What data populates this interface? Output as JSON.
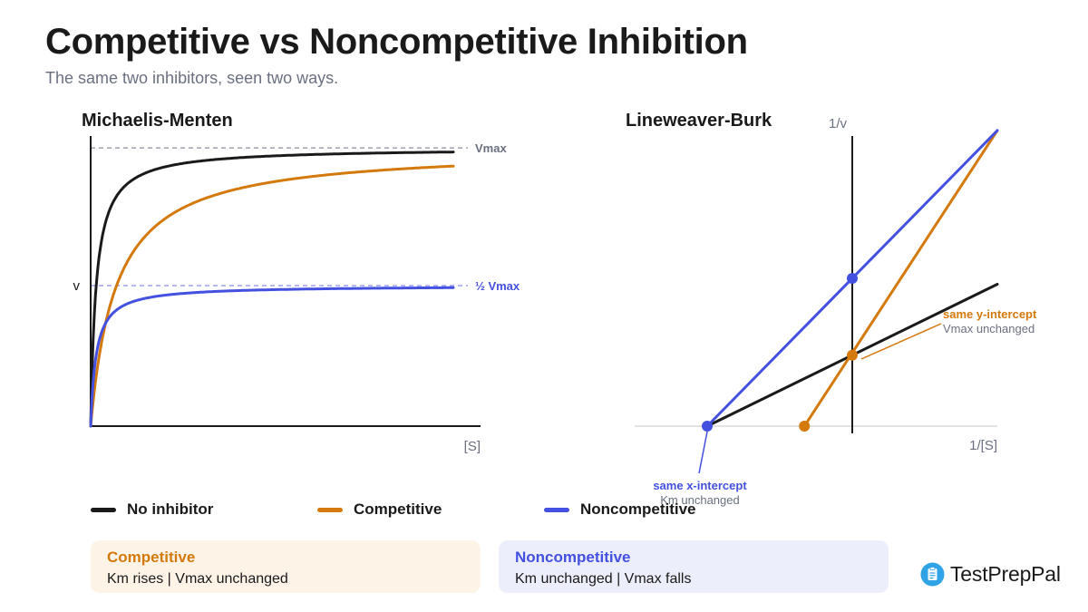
{
  "header": {
    "title": "Competitive vs Noncompetitive Inhibition",
    "subtitle": "The same two inhibitors, seen two ways."
  },
  "colors": {
    "no_inhibitor": "#1a1a1a",
    "competitive": "#d4790c",
    "noncompetitive": "#4450e0",
    "axis": "#1a1a1a",
    "reference": "#8a8fa0",
    "muted_text": "#6b7080"
  },
  "chart_data": [
    {
      "type": "line",
      "title": "Michaelis-Menten",
      "xlabel": "[S]",
      "ylabel": "v",
      "xlim": [
        0,
        100
      ],
      "ylim": [
        0,
        1
      ],
      "grid": false,
      "reference_lines": [
        {
          "label": "Vmax",
          "y": 0.99
        },
        {
          "label": "½ Vmax",
          "y": 0.5
        }
      ],
      "series": [
        {
          "name": "No inhibitor",
          "kind": "michaelis-menten",
          "vmax": 0.99,
          "km": 1.5
        },
        {
          "name": "Competitive",
          "kind": "michaelis-menten",
          "vmax": 0.99,
          "km": 7
        },
        {
          "name": "Noncompetitive",
          "kind": "michaelis-menten",
          "vmax": 0.5,
          "km": 1.5
        }
      ]
    },
    {
      "type": "line",
      "title": "Lineweaver-Burk",
      "xlabel": "1/[S]",
      "ylabel": "1/v",
      "xlim": [
        -1,
        1
      ],
      "ylim": [
        0,
        1.15
      ],
      "grid": false,
      "series": [
        {
          "name": "No inhibitor",
          "x": [
            -1,
            1
          ],
          "y": [
            0,
            0.6
          ]
        },
        {
          "name": "Competitive",
          "x": [
            -0.33,
            1
          ],
          "y": [
            0,
            1.25
          ]
        },
        {
          "name": "Noncompetitive",
          "x": [
            -1,
            1
          ],
          "y": [
            0,
            1.25
          ]
        }
      ],
      "points": [
        {
          "series": "Noncompetitive",
          "x": -1,
          "y": 0
        },
        {
          "series": "Competitive",
          "x": -0.33,
          "y": 0
        },
        {
          "series": "Competitive",
          "x": 0,
          "y": 0.3
        },
        {
          "series": "Noncompetitive",
          "x": 0,
          "y": 0.625
        }
      ],
      "annotations": [
        {
          "title": "same y-intercept",
          "text": "Vmax unchanged",
          "series": "Competitive"
        },
        {
          "title": "same x-intercept",
          "text": "Km unchanged",
          "series": "Noncompetitive"
        }
      ]
    }
  ],
  "legend": [
    {
      "label": "No inhibitor",
      "color": "#1a1a1a"
    },
    {
      "label": "Competitive",
      "color": "#d4790c"
    },
    {
      "label": "Noncompetitive",
      "color": "#4450e0"
    }
  ],
  "cards": {
    "competitive": {
      "title": "Competitive",
      "text": "Km rises | Vmax unchanged"
    },
    "noncompetitive": {
      "title": "Noncompetitive",
      "text": "Km unchanged | Vmax falls"
    }
  },
  "brand": {
    "name": "TestPrepPal",
    "icon": "clipboard-icon"
  }
}
